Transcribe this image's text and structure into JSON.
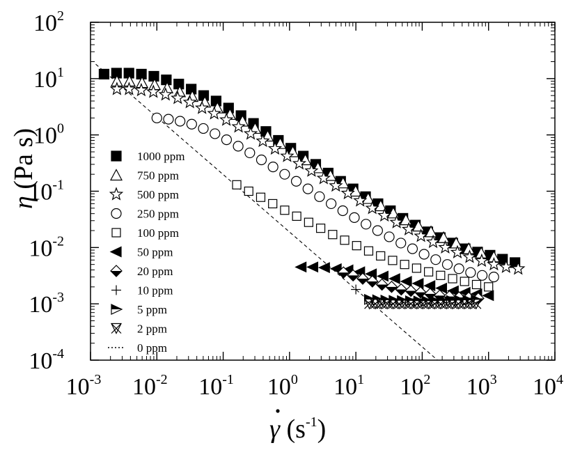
{
  "chart_data": {
    "type": "scatter",
    "x_scale": "log",
    "y_scale": "log",
    "xlim": [
      0.001,
      10000
    ],
    "ylim": [
      0.0001,
      100
    ],
    "xlabel": {
      "symbol": "γ",
      "rest": " (s",
      "exp": "-1",
      "close": ")"
    },
    "ylabel": {
      "symbol": "η",
      "rest": " (Pa s)"
    },
    "x_ticks": [
      {
        "base": "10",
        "exp": "-3"
      },
      {
        "base": "10",
        "exp": "-2"
      },
      {
        "base": "10",
        "exp": "-1"
      },
      {
        "base": "10",
        "exp": "0"
      },
      {
        "base": "10",
        "exp": "1"
      },
      {
        "base": "10",
        "exp": "2"
      },
      {
        "base": "10",
        "exp": "3"
      },
      {
        "base": "10",
        "exp": "4"
      }
    ],
    "y_ticks": [
      {
        "base": "10",
        "exp": "-4"
      },
      {
        "base": "10",
        "exp": "-3"
      },
      {
        "base": "10",
        "exp": "-2"
      },
      {
        "base": "10",
        "exp": "-1"
      },
      {
        "base": "10",
        "exp": "0"
      },
      {
        "base": "10",
        "exp": "1"
      },
      {
        "base": "10",
        "exp": "2"
      }
    ],
    "legend_position": "left",
    "series": [
      {
        "name": "1000 ppm",
        "marker": "square-filled",
        "x_start": 0.0016,
        "x_end": 2500,
        "y": [
          12,
          12.5,
          12.5,
          12,
          11,
          9.5,
          8,
          6.5,
          5,
          4,
          3,
          2.2,
          1.6,
          1.15,
          0.8,
          0.58,
          0.42,
          0.3,
          0.21,
          0.15,
          0.11,
          0.08,
          0.06,
          0.045,
          0.033,
          0.025,
          0.019,
          0.015,
          0.012,
          0.0095,
          0.0083,
          0.0073,
          0.0062,
          0.0054
        ]
      },
      {
        "name": "750 ppm",
        "marker": "triangle-open",
        "x_start": 0.0025,
        "x_end": 1200,
        "y": [
          9,
          9,
          8.5,
          7.8,
          6.8,
          5.8,
          4.8,
          3.8,
          3,
          2.3,
          1.75,
          1.3,
          0.95,
          0.7,
          0.5,
          0.36,
          0.26,
          0.19,
          0.14,
          0.1,
          0.074,
          0.055,
          0.041,
          0.031,
          0.024,
          0.019,
          0.015,
          0.012,
          0.0095,
          0.008,
          0.0068
        ]
      },
      {
        "name": "500 ppm",
        "marker": "star-open",
        "x_start": 0.0025,
        "x_end": 2800,
        "y": [
          6.5,
          6.5,
          6.2,
          5.8,
          5.2,
          4.5,
          3.8,
          3,
          2.4,
          1.85,
          1.4,
          1.05,
          0.78,
          0.57,
          0.42,
          0.31,
          0.23,
          0.17,
          0.125,
          0.092,
          0.068,
          0.05,
          0.037,
          0.028,
          0.021,
          0.016,
          0.0125,
          0.01,
          0.0082,
          0.0068,
          0.0058,
          0.005,
          0.0045,
          0.0042
        ]
      },
      {
        "name": "250 ppm",
        "marker": "circle-open",
        "x_start": 0.01,
        "x_end": 1200,
        "y": [
          2,
          1.9,
          1.75,
          1.55,
          1.3,
          1.05,
          0.82,
          0.63,
          0.48,
          0.36,
          0.27,
          0.2,
          0.15,
          0.11,
          0.08,
          0.06,
          0.045,
          0.034,
          0.026,
          0.02,
          0.0155,
          0.012,
          0.0095,
          0.0076,
          0.0061,
          0.005,
          0.0042,
          0.0036,
          0.0032,
          0.003
        ]
      },
      {
        "name": "100 ppm",
        "marker": "square-open",
        "x_start": 0.16,
        "x_end": 1000,
        "y": [
          0.13,
          0.1,
          0.078,
          0.06,
          0.046,
          0.036,
          0.028,
          0.022,
          0.017,
          0.0135,
          0.0108,
          0.0087,
          0.0071,
          0.0059,
          0.005,
          0.0043,
          0.0037,
          0.0032,
          0.0028,
          0.0025,
          0.0022,
          0.002
        ]
      },
      {
        "name": "50 ppm",
        "marker": "triangle-left-filled",
        "x_start": 1.5,
        "x_end": 1000,
        "y": [
          0.0045,
          0.0045,
          0.0044,
          0.0042,
          0.004,
          0.0037,
          0.0034,
          0.0031,
          0.0028,
          0.0025,
          0.0023,
          0.0021,
          0.0019,
          0.0017,
          0.0016,
          0.0015,
          0.0014
        ]
      },
      {
        "name": "20 ppm",
        "marker": "diamond-half",
        "x_start": 6.5,
        "x_end": 700,
        "y": [
          0.0036,
          0.0032,
          0.0028,
          0.0025,
          0.0022,
          0.002,
          0.0018,
          0.0017,
          0.0016,
          0.0015,
          0.0014,
          0.00135,
          0.0013,
          0.00128,
          0.00125
        ]
      },
      {
        "name": "10 ppm",
        "marker": "plus",
        "x_start": 10,
        "x_end": 10,
        "y": [
          0.0018
        ]
      },
      {
        "name": "5 ppm",
        "marker": "triangle-right-half",
        "x_start": 16,
        "x_end": 650,
        "y": [
          0.0012,
          0.00118,
          0.00116,
          0.00115,
          0.00114,
          0.00113,
          0.00112,
          0.00112,
          0.00112,
          0.00113,
          0.00114,
          0.00115,
          0.00116,
          0.00118
        ]
      },
      {
        "name": "2 ppm",
        "marker": "x-triangle",
        "x_start": 16,
        "x_end": 650,
        "y": [
          0.001,
          0.001,
          0.001,
          0.001,
          0.001,
          0.001,
          0.001,
          0.001,
          0.001,
          0.001,
          0.001,
          0.001,
          0.001,
          0.001,
          0.001,
          0.001,
          0.001,
          0.001,
          0.001
        ]
      },
      {
        "name": "0 ppm",
        "marker": "dotted-line",
        "line_points": [
          [
            0.0012,
            18
          ],
          [
            170,
            0.0001
          ]
        ]
      }
    ]
  }
}
